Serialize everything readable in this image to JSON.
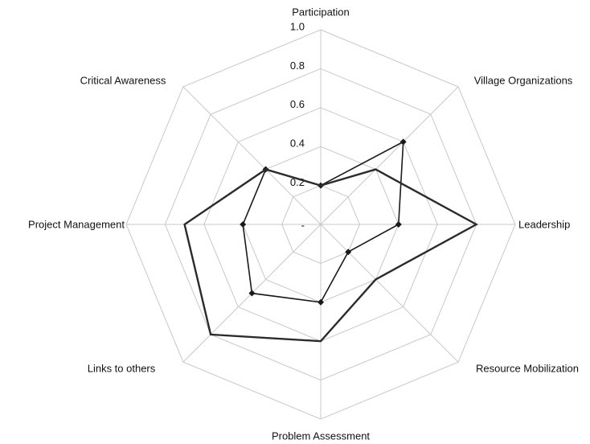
{
  "chart_data": {
    "type": "radar",
    "categories": [
      "Participation",
      "Village Organizations",
      "Leadership",
      "Resource Mobilization",
      "Problem Assessment",
      "Links to others",
      "Project Management",
      "Critical Awareness"
    ],
    "series": [
      {
        "color": "#1a1a1a",
        "marker": "diamond",
        "values": [
          0.2,
          0.6,
          0.4,
          0.2,
          0.4,
          0.5,
          0.4,
          0.4
        ]
      },
      {
        "color": "#2b2b2b",
        "values": [
          0.2,
          0.4,
          0.8,
          0.4,
          0.6,
          0.8,
          0.7,
          0.4
        ]
      }
    ],
    "ylim": [
      0,
      1
    ],
    "yticks": [
      {
        "value": 0,
        "label": "-"
      },
      0.2,
      0.4,
      0.6,
      0.8,
      {
        "value": 1,
        "label": "1.0"
      }
    ],
    "grid": true
  }
}
